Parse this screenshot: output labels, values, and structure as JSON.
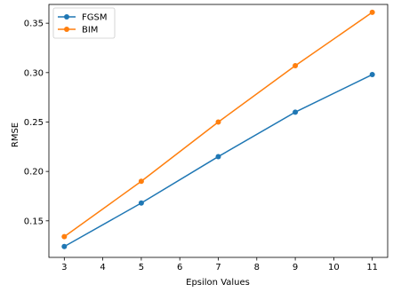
{
  "chart_data": {
    "type": "line",
    "title": "",
    "xlabel": "Epsilon Values",
    "ylabel": "RMSE",
    "xlim": [
      2.6,
      11.4
    ],
    "ylim": [
      0.113,
      0.369
    ],
    "xticks": [
      3,
      4,
      5,
      6,
      7,
      8,
      9,
      10,
      11
    ],
    "yticks": [
      0.15,
      0.2,
      0.25,
      0.3,
      0.35
    ],
    "ytick_labels": [
      "0.15",
      "0.20",
      "0.25",
      "0.30",
      "0.35"
    ],
    "grid": false,
    "legend_position": "top-left",
    "x": [
      3,
      5,
      7,
      9,
      11
    ],
    "series": [
      {
        "name": "FGSM",
        "color": "#1f77b4",
        "values": [
          0.124,
          0.168,
          0.215,
          0.26,
          0.298
        ]
      },
      {
        "name": "BIM",
        "color": "#ff7f0e",
        "values": [
          0.134,
          0.19,
          0.25,
          0.307,
          0.361
        ]
      }
    ]
  }
}
